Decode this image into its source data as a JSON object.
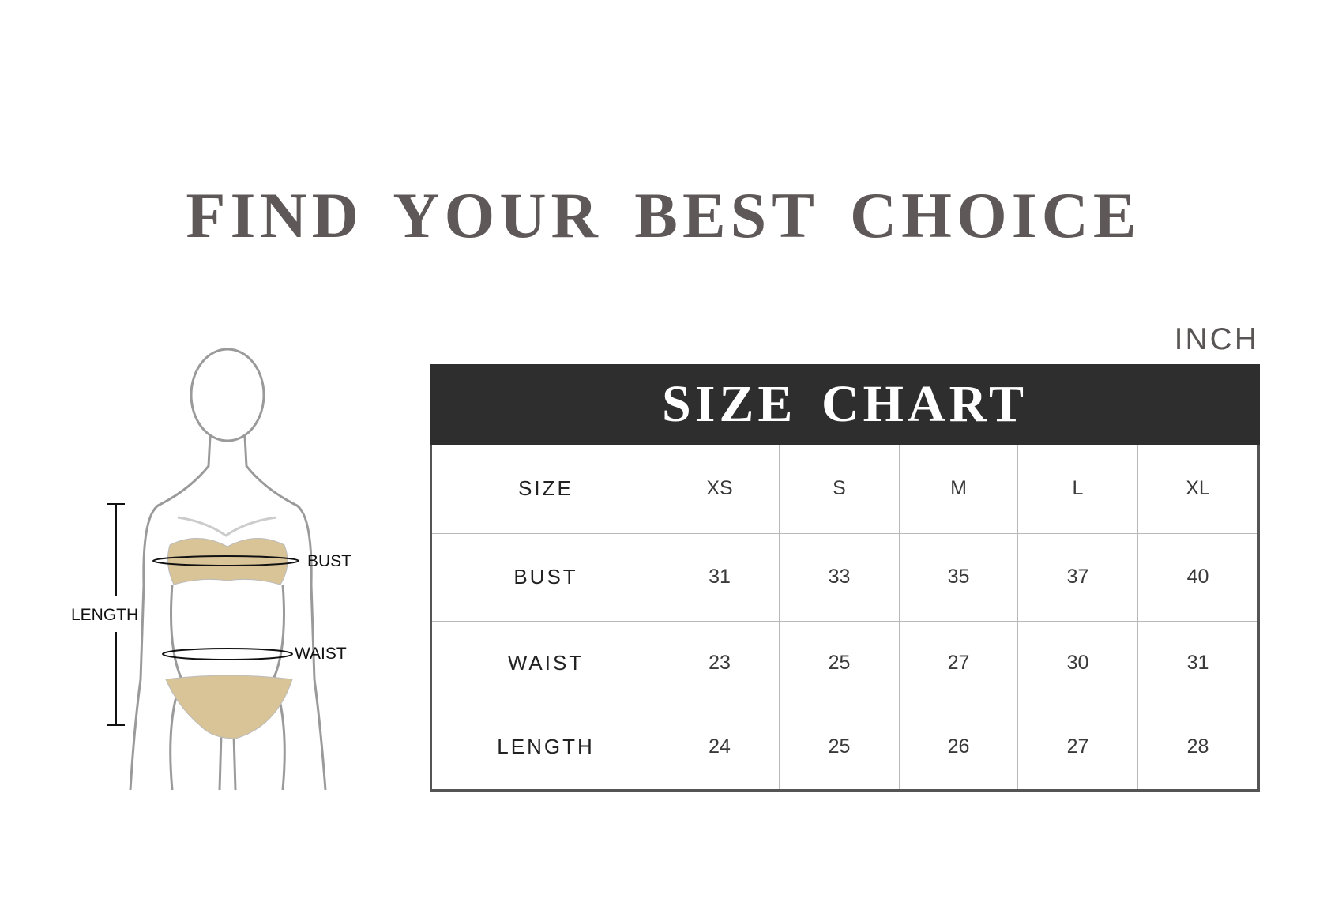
{
  "title": "FIND YOUR BEST CHOICE",
  "unit": "INCH",
  "figure": {
    "labels": {
      "bust": "BUST",
      "waist": "WAIST",
      "length": "LENGTH"
    },
    "garment_color": "#d9c498"
  },
  "size_chart": {
    "title": "SIZE CHART",
    "header_color": "#2e2e2e",
    "columns": [
      "SIZE",
      "XS",
      "S",
      "M",
      "L",
      "XL"
    ],
    "rows": [
      {
        "label": "BUST",
        "values": [
          "31",
          "33",
          "35",
          "37",
          "40"
        ]
      },
      {
        "label": "WAIST",
        "values": [
          "23",
          "25",
          "27",
          "30",
          "31"
        ]
      },
      {
        "label": "LENGTH",
        "values": [
          "24",
          "25",
          "26",
          "27",
          "28"
        ]
      }
    ]
  }
}
